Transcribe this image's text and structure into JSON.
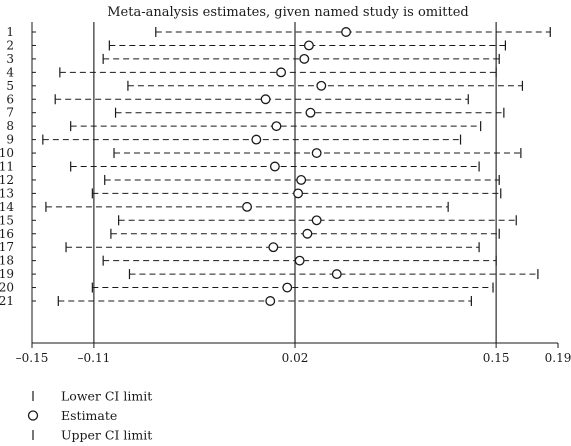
{
  "chart_data": {
    "type": "forest",
    "title": "Meta-analysis estimates, given named study is omitted",
    "xlim": [
      -0.15,
      0.19
    ],
    "x_ticks": [
      -0.15,
      -0.11,
      0.02,
      0.15,
      0.19
    ],
    "x_tick_labels": [
      "–0.15",
      "–0.11",
      "0.02",
      "0.15",
      "0.19"
    ],
    "reference_lines": [
      -0.11,
      0.02,
      0.15
    ],
    "grid": false,
    "studies": [
      {
        "label": "1",
        "lower": -0.07,
        "estimate": 0.053,
        "upper": 0.185
      },
      {
        "label": "2",
        "lower": -0.1,
        "estimate": 0.029,
        "upper": 0.156
      },
      {
        "label": "3",
        "lower": -0.104,
        "estimate": 0.026,
        "upper": 0.152
      },
      {
        "label": "4",
        "lower": -0.132,
        "estimate": 0.011,
        "upper": 0.15
      },
      {
        "label": "5",
        "lower": -0.088,
        "estimate": 0.037,
        "upper": 0.167
      },
      {
        "label": "6",
        "lower": -0.135,
        "estimate": 0.001,
        "upper": 0.132
      },
      {
        "label": "7",
        "lower": -0.096,
        "estimate": 0.03,
        "upper": 0.155
      },
      {
        "label": "8",
        "lower": -0.125,
        "estimate": 0.008,
        "upper": 0.14
      },
      {
        "label": "9",
        "lower": -0.143,
        "estimate": -0.005,
        "upper": 0.127
      },
      {
        "label": "10",
        "lower": -0.097,
        "estimate": 0.034,
        "upper": 0.166
      },
      {
        "label": "11",
        "lower": -0.125,
        "estimate": 0.007,
        "upper": 0.139
      },
      {
        "label": "12",
        "lower": -0.103,
        "estimate": 0.024,
        "upper": 0.152
      },
      {
        "label": "13",
        "lower": -0.111,
        "estimate": 0.022,
        "upper": 0.153
      },
      {
        "label": "14",
        "lower": -0.141,
        "estimate": -0.011,
        "upper": 0.119
      },
      {
        "label": "15",
        "lower": -0.094,
        "estimate": 0.034,
        "upper": 0.163
      },
      {
        "label": "16",
        "lower": -0.099,
        "estimate": 0.028,
        "upper": 0.152
      },
      {
        "label": "17",
        "lower": -0.128,
        "estimate": 0.006,
        "upper": 0.139
      },
      {
        "label": "18",
        "lower": -0.104,
        "estimate": 0.023,
        "upper": 0.15
      },
      {
        "label": "19",
        "lower": -0.087,
        "estimate": 0.047,
        "upper": 0.177
      },
      {
        "label": "20",
        "lower": -0.111,
        "estimate": 0.015,
        "upper": 0.148
      },
      {
        "label": "21",
        "lower": -0.133,
        "estimate": 0.004,
        "upper": 0.134
      }
    ],
    "legend": {
      "position": "bottom-left",
      "entries": [
        {
          "symbol": "bar",
          "label": "Lower CI limit"
        },
        {
          "symbol": "circle",
          "label": "Estimate"
        },
        {
          "symbol": "bar",
          "label": "Upper CI limit"
        }
      ]
    }
  }
}
